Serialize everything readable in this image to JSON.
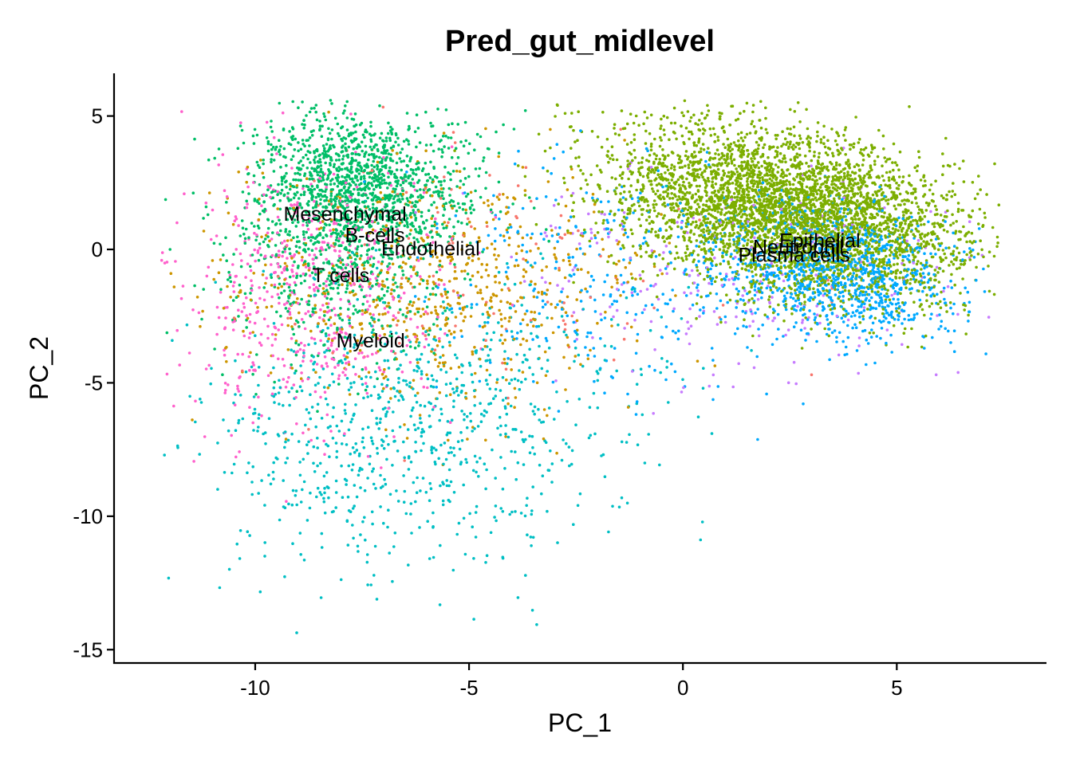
{
  "chart_data": {
    "type": "scatter",
    "title": "Pred_gut_midlevel",
    "xlabel": "PC_1",
    "ylabel": "PC_2",
    "xlim": [
      -13.3,
      8.5
    ],
    "ylim": [
      -15.5,
      6.6
    ],
    "x_ticks": [
      -10,
      -5,
      0,
      5
    ],
    "x_tick_labels": [
      "-10",
      "-5",
      "0",
      "5"
    ],
    "y_ticks": [
      5,
      0,
      -5,
      -10,
      -15
    ],
    "y_tick_labels": [
      "5",
      "0",
      "-5",
      "-10",
      "-15"
    ],
    "grid": false,
    "legend": "none",
    "series": [
      {
        "color": "#7CAE00",
        "count": 4200,
        "clusters": [
          {
            "cx": 2.5,
            "cy": 1.4,
            "sx": 2.2,
            "sy": 1.4,
            "tilt": -0.5,
            "w": 1
          }
        ]
      },
      {
        "color": "#00BE67",
        "count": 1800,
        "clusters": [
          {
            "cx": -7.6,
            "cy": 2.4,
            "sx": 1.3,
            "sy": 1.4,
            "tilt": 0,
            "w": 0.75
          },
          {
            "cx": -8.2,
            "cy": -1.0,
            "sx": 1.3,
            "sy": 1.8,
            "tilt": 0,
            "w": 0.25
          }
        ]
      },
      {
        "color": "#00A9FF",
        "count": 1400,
        "clusters": [
          {
            "cx": 3.5,
            "cy": -0.8,
            "sx": 1.5,
            "sy": 1.2,
            "tilt": -0.4,
            "w": 0.8
          },
          {
            "cx": -2.0,
            "cy": -1.0,
            "sx": 2.0,
            "sy": 2.5,
            "tilt": 0,
            "w": 0.2
          }
        ]
      },
      {
        "color": "#00BFC4",
        "count": 900,
        "clusters": [
          {
            "cx": -7.0,
            "cy": -7.0,
            "sx": 2.2,
            "sy": 2.6,
            "tilt": 0,
            "w": 0.8
          },
          {
            "cx": -3.5,
            "cy": -5.0,
            "sx": 1.8,
            "sy": 2.2,
            "tilt": 0,
            "w": 0.2
          }
        ]
      },
      {
        "color": "#CD9600",
        "count": 700,
        "clusters": [
          {
            "cx": -6.0,
            "cy": -1.5,
            "sx": 2.5,
            "sy": 2.3,
            "tilt": 0,
            "w": 1
          }
        ]
      },
      {
        "color": "#F8766D",
        "count": 120,
        "clusters": [
          {
            "cx": -5.0,
            "cy": -1.0,
            "sx": 3.0,
            "sy": 2.5,
            "tilt": 0,
            "w": 1
          }
        ]
      },
      {
        "color": "#FF61CC",
        "count": 550,
        "clusters": [
          {
            "cx": -8.8,
            "cy": -1.5,
            "sx": 1.5,
            "sy": 2.5,
            "tilt": 0,
            "w": 1
          }
        ]
      },
      {
        "color": "#C77CFF",
        "count": 250,
        "clusters": [
          {
            "cx": 1.0,
            "cy": -1.0,
            "sx": 3.0,
            "sy": 2.0,
            "tilt": 0,
            "w": 1
          }
        ]
      }
    ],
    "annotations": [
      {
        "text": "Mesenchymal",
        "x": -7.9,
        "y": 1.35
      },
      {
        "text": "B-cells",
        "x": -7.2,
        "y": 0.55
      },
      {
        "text": "Endothelial",
        "x": -5.9,
        "y": 0.05
      },
      {
        "text": "T cells",
        "x": -8.0,
        "y": -0.95
      },
      {
        "text": "Myeloid",
        "x": -7.3,
        "y": -3.4
      },
      {
        "text": "Neutrophil",
        "x": 2.7,
        "y": 0.1
      },
      {
        "text": "Epithelial",
        "x": 3.2,
        "y": 0.35
      },
      {
        "text": "Plasma cells",
        "x": 2.6,
        "y": -0.2
      }
    ]
  }
}
